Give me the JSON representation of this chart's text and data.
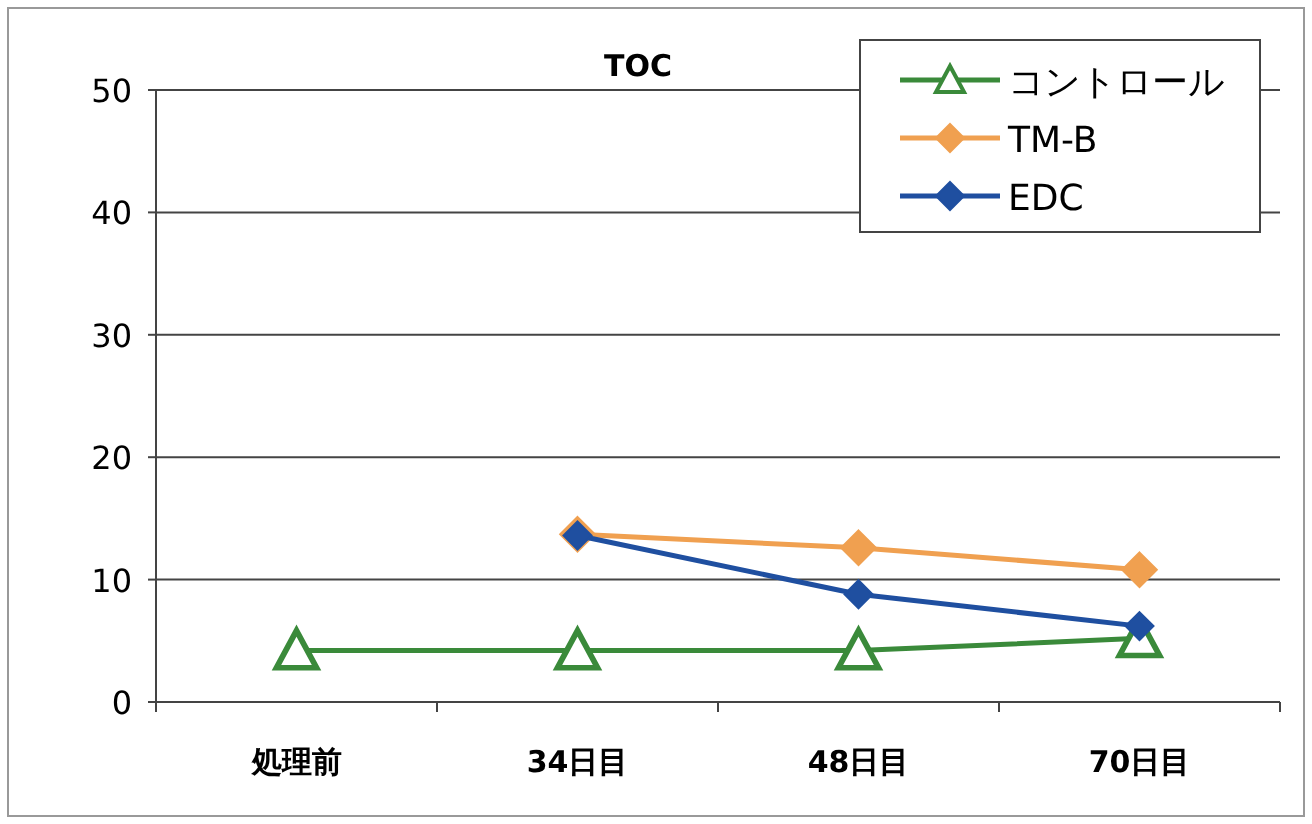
{
  "chart_data": {
    "type": "line",
    "title": "TOC",
    "categories": [
      "処理前",
      "34日目",
      "48日目",
      "70日目"
    ],
    "series": [
      {
        "name": "コントロール",
        "color": "#3a8a3a",
        "marker": "triangle",
        "values": [
          4.2,
          4.2,
          4.2,
          5.2
        ]
      },
      {
        "name": "TM-B",
        "color": "#f0a050",
        "marker": "diamond",
        "values": [
          null,
          13.7,
          12.6,
          10.8
        ]
      },
      {
        "name": "EDC",
        "color": "#1f4fa0",
        "marker": "diamond",
        "values": [
          null,
          13.6,
          8.8,
          6.2
        ]
      }
    ],
    "ylim": [
      0,
      50
    ],
    "yticks": [
      0,
      10,
      20,
      30,
      40,
      50
    ],
    "grid": "y",
    "legend": "top right"
  }
}
